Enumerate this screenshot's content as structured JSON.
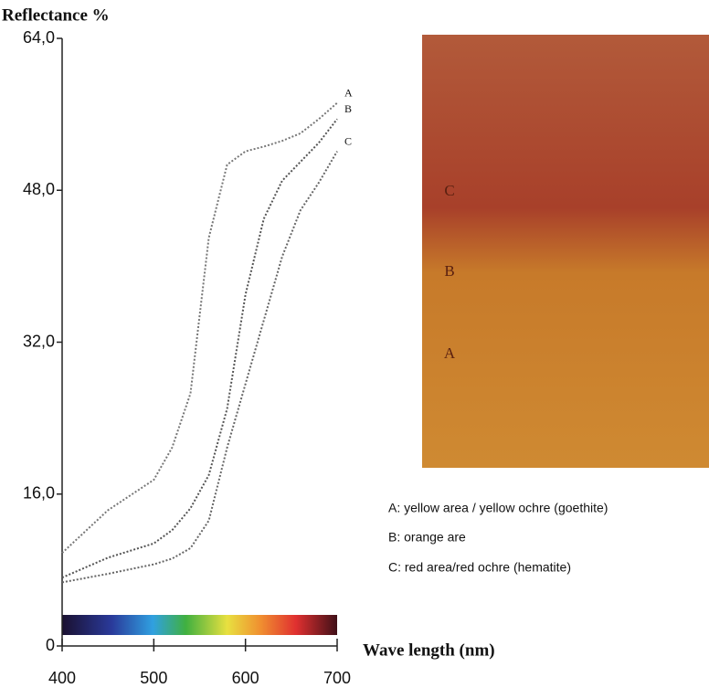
{
  "chart_data": {
    "type": "line",
    "y_label": "Reflectance %",
    "x_label": "Wave length (nm)",
    "x": [
      400,
      450,
      500,
      520,
      540,
      560,
      580,
      600,
      620,
      640,
      660,
      680,
      700
    ],
    "series": [
      {
        "name": "A",
        "color": "#777777",
        "values": [
          9.8,
          14.3,
          17.5,
          20.9,
          26.6,
          43.0,
          50.7,
          52.1,
          52.6,
          53.2,
          54.0,
          55.5,
          57.2
        ]
      },
      {
        "name": "B",
        "color": "#555555",
        "values": [
          7.2,
          9.3,
          10.8,
          12.2,
          14.5,
          18.0,
          25.0,
          37.0,
          45.0,
          49.0,
          51.0,
          53.0,
          55.5
        ]
      },
      {
        "name": "C",
        "color": "#666666",
        "values": [
          6.7,
          7.6,
          8.6,
          9.2,
          10.3,
          13.2,
          20.9,
          27.6,
          34.3,
          41.0,
          45.9,
          48.8,
          52.1
        ]
      }
    ],
    "xlim": [
      400,
      700
    ],
    "xticks": [
      400,
      500,
      600,
      700
    ],
    "ylim": [
      0,
      64
    ],
    "yticks": [
      0,
      {
        "value": 16,
        "label": "16,0"
      },
      {
        "value": 32,
        "label": "32,0"
      },
      {
        "value": 48,
        "label": "48,0"
      },
      {
        "value": 64,
        "label": "64,0"
      }
    ],
    "photo_labels": [
      "C",
      "B",
      "A"
    ],
    "annotations": [
      "A: yellow area / yellow ochre  (goethite)",
      "B: orange are",
      "C: red area/red ochre (hematite)"
    ]
  }
}
